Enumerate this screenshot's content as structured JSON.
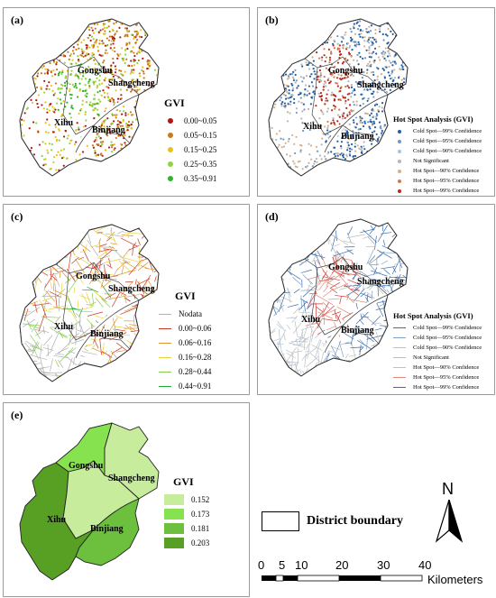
{
  "panels": {
    "a": {
      "label": "(a)"
    },
    "b": {
      "label": "(b)"
    },
    "c": {
      "label": "(c)"
    },
    "d": {
      "label": "(d)"
    },
    "e": {
      "label": "(e)"
    }
  },
  "districts": {
    "gongshu": "Gongshu",
    "shangcheng": "Shangcheng",
    "xihu": "Xihu",
    "binjiang": "Binjiang"
  },
  "legend_a": {
    "title": "GVI",
    "items": [
      {
        "label": "0.00~0.05",
        "color": "#b01818"
      },
      {
        "label": "0.05~0.15",
        "color": "#c87a1c"
      },
      {
        "label": "0.15~0.25",
        "color": "#e6c21e"
      },
      {
        "label": "0.25~0.35",
        "color": "#8fd43c"
      },
      {
        "label": "0.35~0.91",
        "color": "#2fb52a"
      }
    ]
  },
  "legend_b": {
    "title": "Hot Spot Analysis (GVI)",
    "items": [
      {
        "label": "Cold Spot—99% Confidence",
        "color": "#1f5fa6"
      },
      {
        "label": "Cold Spot—95% Confidence",
        "color": "#6f97c4"
      },
      {
        "label": "Cold Spot—90% Confidence",
        "color": "#a8c0da"
      },
      {
        "label": "Not Significant",
        "color": "#b5b5b5"
      },
      {
        "label": "Hot Spot—90% Confidence",
        "color": "#d4b08a"
      },
      {
        "label": "Hot Spot—95% Confidence",
        "color": "#d47a4a"
      },
      {
        "label": "Hot Spot—99% Confidence",
        "color": "#b52a1a"
      }
    ]
  },
  "legend_c": {
    "title": "GVI",
    "items": [
      {
        "label": "Nodata",
        "color": "#b0b0b0"
      },
      {
        "label": "0.00~0.06",
        "color": "#c93a2a"
      },
      {
        "label": "0.06~0.16",
        "color": "#e0962a"
      },
      {
        "label": "0.16~0.28",
        "color": "#e8d23a"
      },
      {
        "label": "0.28~0.44",
        "color": "#86d04a"
      },
      {
        "label": "0.44~0.91",
        "color": "#1fa83a"
      }
    ]
  },
  "legend_d": {
    "title": "Hot Spot Analysis (GVI)",
    "items": [
      {
        "label": "Cold Spot—99% Confidence",
        "color": "#3a6fb0"
      },
      {
        "label": "Cold Spot—95% Confidence",
        "color": "#7ea0c8"
      },
      {
        "label": "Cold Spot—90% Confidence",
        "color": "#b0c4dc"
      },
      {
        "label": "Not Significant",
        "color": "#bdbdbd"
      },
      {
        "label": "Hot Spot—90% Confidence",
        "color": "#e0b8a0"
      },
      {
        "label": "Hot Spot—95% Confidence",
        "color": "#e08a7a"
      },
      {
        "label": "Hot Spot—99% Confidence",
        "color": "#cc3a3a"
      }
    ]
  },
  "legend_e": {
    "title": "GVI",
    "items": [
      {
        "label": "0.152",
        "color": "#c6ec9c"
      },
      {
        "label": "0.173",
        "color": "#86e24e"
      },
      {
        "label": "0.181",
        "color": "#6cc03e"
      },
      {
        "label": "0.203",
        "color": "#58a024"
      }
    ]
  },
  "district_fill_e": {
    "xihu": "#58a024",
    "gongshu": "#86e24e",
    "shangcheng": "#c6ec9c",
    "binjiang": "#6cc03e"
  },
  "boundary_label": "District boundary",
  "north_label": "N",
  "scalebar": {
    "ticks": [
      "0",
      "5",
      "10",
      "20",
      "30",
      "40"
    ],
    "unit": "Kilometers"
  }
}
